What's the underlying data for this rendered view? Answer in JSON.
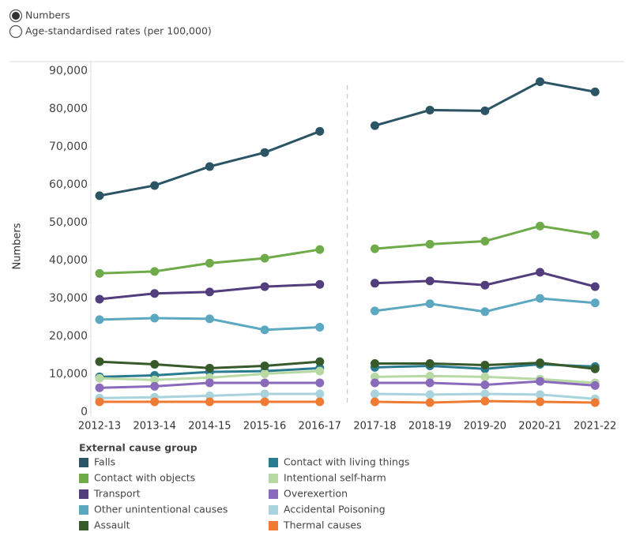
{
  "options": [
    "Numbers",
    "Age-standardised rates (per 100,000)"
  ],
  "selected_option": 0,
  "chart_data": {
    "type": "line",
    "y_label": "Numbers",
    "legend_title": "External cause group",
    "categories": [
      "2012-13",
      "2013-14",
      "2014-15",
      "2015-16",
      "2016-17",
      "2017-18",
      "2018-19",
      "2019-20",
      "2020-21",
      "2021-22"
    ],
    "ylim": [
      0,
      90000
    ],
    "yticks": [
      0,
      {
        "value": 10000,
        "label": "10,000"
      },
      {
        "value": 20000,
        "label": "20,000"
      },
      {
        "value": 30000,
        "label": "30,000"
      },
      {
        "value": 40000,
        "label": "40,000"
      },
      {
        "value": 50000,
        "label": "50,000"
      },
      {
        "value": 60000,
        "label": "60,000"
      },
      {
        "value": 70000,
        "label": "70,000"
      },
      {
        "value": 80000,
        "label": "80,000"
      },
      {
        "value": 90000,
        "label": "90,000"
      }
    ],
    "series": [
      {
        "name": "Falls",
        "color": "#2b5464",
        "values": [
          57100,
          59800,
          64800,
          68500,
          74100,
          75600,
          79700,
          79500,
          87200,
          84500
        ]
      },
      {
        "name": "Contact with living things",
        "color": "#2a7b90",
        "values": [
          9300,
          9700,
          10600,
          10800,
          11600,
          11800,
          12200,
          11400,
          12600,
          12000
        ]
      },
      {
        "name": "Contact with objects",
        "color": "#6fab4a",
        "values": [
          36600,
          37100,
          39300,
          40600,
          42900,
          43100,
          44300,
          45100,
          49100,
          46800
        ]
      },
      {
        "name": "Intentional self-harm",
        "color": "#b9d9a4",
        "values": [
          8900,
          8500,
          9100,
          10100,
          10800,
          9300,
          9500,
          9300,
          8700,
          7700
        ]
      },
      {
        "name": "Transport",
        "color": "#523e7d",
        "values": [
          29800,
          31300,
          31700,
          33100,
          33700,
          34000,
          34600,
          33500,
          36900,
          33100
        ]
      },
      {
        "name": "Overexertion",
        "color": "#8a6bbb",
        "values": [
          6400,
          6800,
          7700,
          7700,
          7700,
          7700,
          7700,
          7200,
          8100,
          7000
        ]
      },
      {
        "name": "Other unintentional causes",
        "color": "#5ba8c0",
        "values": [
          24400,
          24800,
          24600,
          21700,
          22400,
          26700,
          28600,
          26500,
          30000,
          28800
        ]
      },
      {
        "name": "Accidental Poisoning",
        "color": "#a9d3dd",
        "values": [
          3700,
          3900,
          4300,
          4800,
          4800,
          4800,
          4600,
          4800,
          4600,
          3500
        ]
      },
      {
        "name": "Assault",
        "color": "#38592a",
        "values": [
          13300,
          12600,
          11600,
          12200,
          13300,
          12800,
          12800,
          12400,
          13000,
          11400
        ]
      },
      {
        "name": "Thermal causes",
        "color": "#ee7a33",
        "values": [
          2700,
          2700,
          2700,
          2700,
          2700,
          2700,
          2500,
          2900,
          2700,
          2500
        ]
      }
    ]
  }
}
